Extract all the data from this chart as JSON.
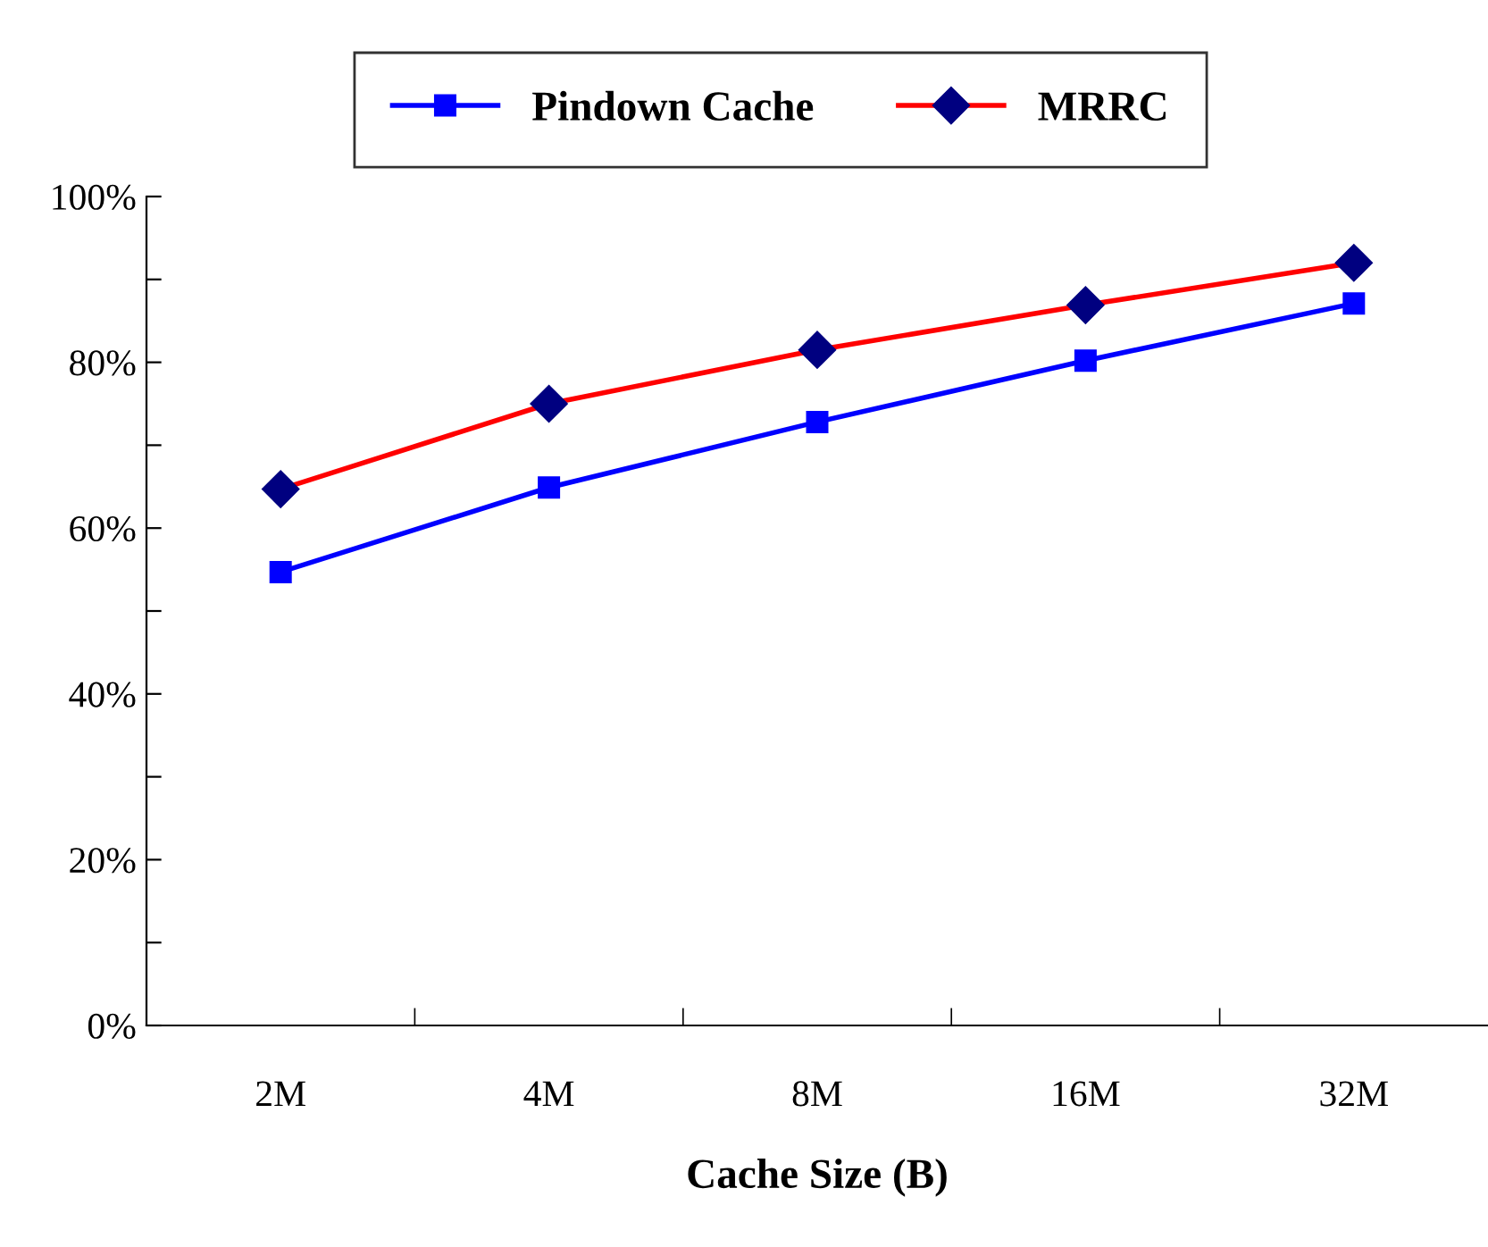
{
  "chart_data": {
    "type": "line",
    "xlabel": "Cache Size (B)",
    "categories": [
      "2M",
      "4M",
      "8M",
      "16M",
      "32M"
    ],
    "series": [
      {
        "name": "Pindown Cache",
        "color": "#0000ff",
        "marker": "square",
        "values": [
          54.7,
          64.9,
          72.8,
          80.2,
          87.1
        ]
      },
      {
        "name": "MRRC",
        "color": "#ff0000",
        "marker": "diamond",
        "values": [
          64.7,
          75.0,
          81.5,
          86.9,
          92.0
        ]
      }
    ],
    "ylim": [
      0,
      100
    ],
    "yticks": [
      {
        "value": 0,
        "label": "0%"
      },
      {
        "value": 10,
        "label": null
      },
      {
        "value": 20,
        "label": "20%"
      },
      {
        "value": 30,
        "label": null
      },
      {
        "value": 40,
        "label": "40%"
      },
      {
        "value": 50,
        "label": null
      },
      {
        "value": 60,
        "label": "60%"
      },
      {
        "value": 70,
        "label": null
      },
      {
        "value": 80,
        "label": "80%"
      },
      {
        "value": 90,
        "label": null
      },
      {
        "value": 100,
        "label": "100%"
      }
    ],
    "grid": false,
    "legend": "top",
    "line_style": "solid"
  }
}
